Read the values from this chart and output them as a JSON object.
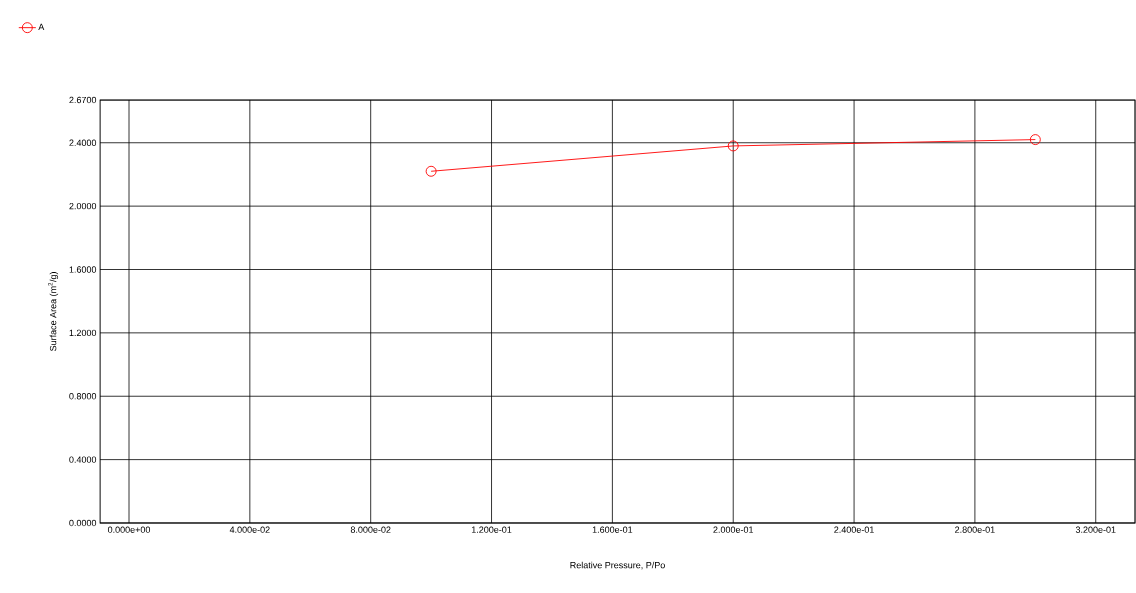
{
  "chart_data": {
    "type": "line",
    "xlabel": "Relative Pressure, P/Po",
    "ylabel": "Surface Area (m$^{2}$/g)",
    "x": [
      0.1,
      0.2,
      0.3
    ],
    "series": [
      {
        "name": "A",
        "color": "#ff0000",
        "values": [
          2.22,
          2.38,
          2.42
        ]
      }
    ],
    "xlim": [
      -0.0096,
      0.333
    ],
    "xticks": [
      {
        "value": 0,
        "label": "0.000e+00"
      },
      {
        "value": 0.04,
        "label": "4.000e-02"
      },
      {
        "value": 0.08,
        "label": "8.000e-02"
      },
      {
        "value": 0.12,
        "label": "1.200e-01"
      },
      {
        "value": 0.16,
        "label": "1.600e-01"
      },
      {
        "value": 0.2,
        "label": "2.000e-01"
      },
      {
        "value": 0.24,
        "label": "2.400e-01"
      },
      {
        "value": 0.28,
        "label": "2.800e-01"
      },
      {
        "value": 0.32,
        "label": "3.200e-01"
      }
    ],
    "ylim": [
      0,
      2.67
    ],
    "yticks": [
      {
        "value": 0,
        "label": "0.0000"
      },
      {
        "value": 0.4,
        "label": "0.4000"
      },
      {
        "value": 0.8,
        "label": "0.8000"
      },
      {
        "value": 1.2,
        "label": "1.2000"
      },
      {
        "value": 1.6,
        "label": "1.6000"
      },
      {
        "value": 2.0,
        "label": "2.0000"
      },
      {
        "value": 2.4,
        "label": "2.4000"
      },
      {
        "value": 2.67,
        "label": "2.6700"
      }
    ],
    "grid": true,
    "legend": "top left",
    "marker": "circle",
    "line_style": "solid"
  }
}
